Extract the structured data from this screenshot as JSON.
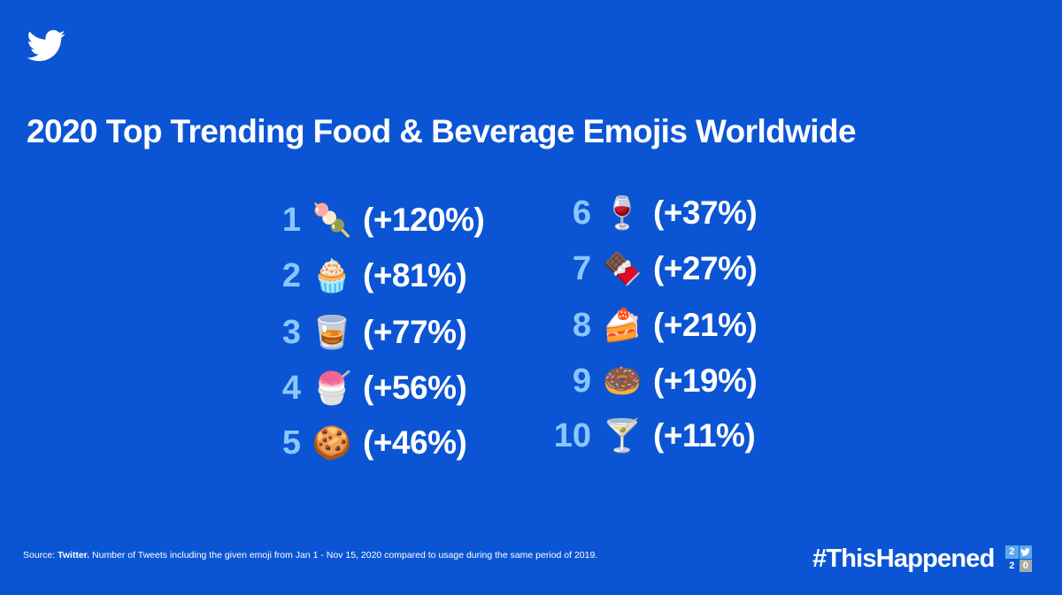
{
  "title": "2020 Top Trending Food & Beverage Emojis Worldwide",
  "items": [
    {
      "rank": "1",
      "emoji": "🍡",
      "emoji_name": "dango",
      "change": "(+120%)"
    },
    {
      "rank": "2",
      "emoji": "🧁",
      "emoji_name": "cupcake",
      "change": "(+81%)"
    },
    {
      "rank": "3",
      "emoji": "🥃",
      "emoji_name": "tumbler-glass",
      "change": "(+77%)"
    },
    {
      "rank": "4",
      "emoji": "🍧",
      "emoji_name": "shaved-ice",
      "change": "(+56%)"
    },
    {
      "rank": "5",
      "emoji": "🍪",
      "emoji_name": "cookie",
      "change": "(+46%)"
    },
    {
      "rank": "6",
      "emoji": "🍷",
      "emoji_name": "wine-glass",
      "change": "(+37%)"
    },
    {
      "rank": "7",
      "emoji": "🍫",
      "emoji_name": "chocolate-bar",
      "change": "(+27%)"
    },
    {
      "rank": "8",
      "emoji": "🍰",
      "emoji_name": "shortcake",
      "change": "(+21%)"
    },
    {
      "rank": "9",
      "emoji": "🍩",
      "emoji_name": "doughnut",
      "change": "(+19%)"
    },
    {
      "rank": "10",
      "emoji": "🍸",
      "emoji_name": "cocktail-glass",
      "change": "(+11%)"
    }
  ],
  "footer": {
    "source_label": "Source:",
    "source_name": "Twitter.",
    "note": "Number of Tweets including the given emoji from Jan 1 - Nov 15, 2020 compared to usage during the same period of 2019."
  },
  "hashtag": "#ThisHappened",
  "badge": {
    "d1": "2",
    "d2": "2",
    "d3": "0"
  },
  "colors": {
    "background": "#0b55d4",
    "rank": "#8cc6ff",
    "text": "#ffffff"
  },
  "icons": {
    "logo": "twitter-bird-icon"
  }
}
